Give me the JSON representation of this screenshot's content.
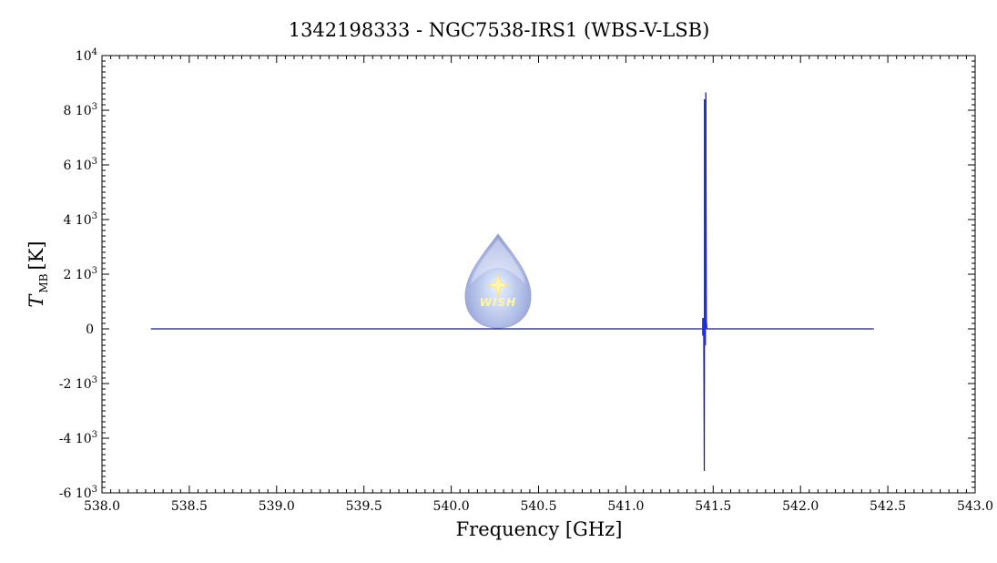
{
  "chart_data": {
    "type": "line",
    "title": "1342198333 - NGC7538-IRS1 (WBS-V-LSB)",
    "xlabel": "Frequency [GHz]",
    "ylabel_main": "T",
    "ylabel_sub": "MB",
    "ylabel_unit": "[K]",
    "xlim": [
      538.0,
      543.0
    ],
    "ylim": [
      -6000,
      10000
    ],
    "x_ticks": [
      538.0,
      538.5,
      539.0,
      539.5,
      540.0,
      540.5,
      541.0,
      541.5,
      542.0,
      542.5,
      543.0
    ],
    "x_tick_labels": [
      "538.0",
      "538.5",
      "539.0",
      "539.5",
      "540.0",
      "540.5",
      "541.0",
      "541.5",
      "542.0",
      "542.5",
      "543.0"
    ],
    "y_ticks": [
      {
        "value": -6000,
        "mant": "-6 10",
        "exp": "3"
      },
      {
        "value": -4000,
        "mant": "-4 10",
        "exp": "3"
      },
      {
        "value": -2000,
        "mant": "-2 10",
        "exp": "3"
      },
      {
        "value": 0,
        "mant": "0",
        "exp": ""
      },
      {
        "value": 2000,
        "mant": "2 10",
        "exp": "3"
      },
      {
        "value": 4000,
        "mant": "4 10",
        "exp": "3"
      },
      {
        "value": 6000,
        "mant": "6 10",
        "exp": "3"
      },
      {
        "value": 8000,
        "mant": "8 10",
        "exp": "3"
      },
      {
        "value": 10000,
        "mant": "10",
        "exp": "4"
      }
    ],
    "series": [
      {
        "color": "#1a1a8c",
        "x": [
          538.28,
          541.44,
          541.443,
          541.446,
          541.449,
          541.452,
          541.455,
          541.458,
          541.461,
          541.464,
          542.42
        ],
        "y": [
          0,
          0,
          400,
          -200,
          -5200,
          8400,
          -600,
          8650,
          300,
          0,
          0
        ]
      }
    ],
    "grid": false,
    "logo_text": "WISH"
  }
}
